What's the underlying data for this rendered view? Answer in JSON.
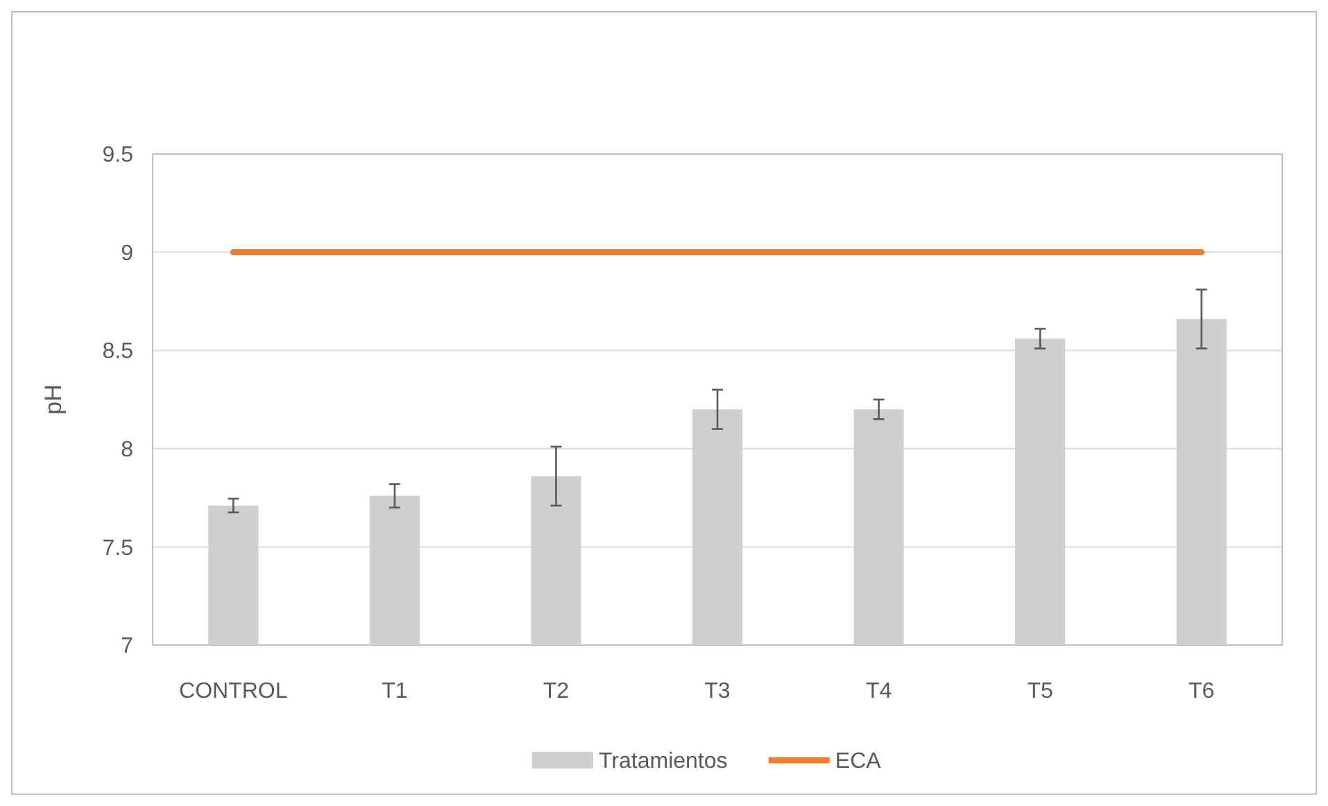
{
  "chart_data": {
    "type": "bar",
    "ylabel": "pH",
    "categories": [
      "CONTROL",
      "T1",
      "T2",
      "T3",
      "T4",
      "T5",
      "T6"
    ],
    "series": [
      {
        "name": "Tratamientos",
        "color": "#d0cece",
        "values": [
          7.71,
          7.76,
          7.86,
          8.2,
          8.2,
          8.56,
          8.66
        ],
        "errors": [
          0.035,
          0.06,
          0.15,
          0.1,
          0.05,
          0.05,
          0.15
        ]
      },
      {
        "name": "ECA",
        "type": "line",
        "color": "#ed7d31",
        "values": [
          9,
          9,
          9,
          9,
          9,
          9,
          9
        ]
      }
    ],
    "ylim": [
      7,
      9.5
    ],
    "yticks": [
      7,
      7.5,
      8,
      8.5,
      9,
      9.5
    ],
    "grid": "y",
    "legend": "bottom"
  }
}
